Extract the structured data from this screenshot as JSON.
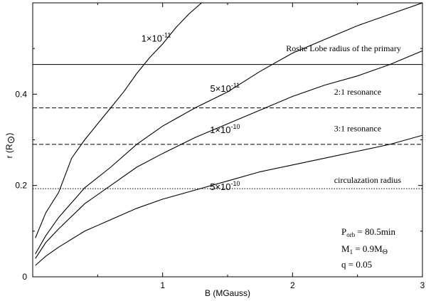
{
  "chart_data": {
    "type": "line",
    "xlabel": "B (MGauss)",
    "ylabel": "r (R",
    "ylabel_symbol": "⊙",
    "ylabel_close": ")",
    "xlim": [
      0.0,
      3.0
    ],
    "ylim": [
      0.0,
      0.6
    ],
    "x_ticks": [
      {
        "value": 1,
        "label": "1"
      },
      {
        "value": 2,
        "label": "2"
      },
      {
        "value": 3,
        "label": "3"
      }
    ],
    "y_ticks": [
      {
        "value": 0.0,
        "label": "0"
      },
      {
        "value": 0.2,
        "label": "0.2"
      },
      {
        "value": 0.4,
        "label": "0.4"
      }
    ],
    "grid": false,
    "series": [
      {
        "label_mantissa": "1×10",
        "label_exp": "-11",
        "label_at": [
          0.95,
          0.515
        ],
        "x": [
          0.02,
          0.1,
          0.2,
          0.3,
          0.4,
          0.5,
          0.6,
          0.7,
          0.8,
          0.9,
          1.0,
          1.1,
          1.2,
          1.3
        ],
        "y": [
          0.085,
          0.14,
          0.185,
          0.26,
          0.3,
          0.335,
          0.37,
          0.405,
          0.445,
          0.48,
          0.51,
          0.545,
          0.575,
          0.6
        ]
      },
      {
        "label_mantissa": "5×10",
        "label_exp": "-11",
        "label_at": [
          1.48,
          0.405
        ],
        "x": [
          0.02,
          0.1,
          0.2,
          0.4,
          0.6,
          0.8,
          1.0,
          1.25,
          1.5,
          1.75,
          2.0,
          2.25,
          2.5,
          2.75,
          3.0
        ],
        "y": [
          0.05,
          0.09,
          0.13,
          0.195,
          0.24,
          0.29,
          0.33,
          0.37,
          0.405,
          0.45,
          0.49,
          0.52,
          0.55,
          0.575,
          0.6
        ]
      },
      {
        "label_mantissa": "1×10",
        "label_exp": "-10",
        "label_at": [
          1.48,
          0.315
        ],
        "x": [
          0.02,
          0.1,
          0.2,
          0.4,
          0.6,
          0.8,
          1.0,
          1.25,
          1.5,
          1.75,
          2.0,
          2.25,
          2.5,
          2.75,
          3.0
        ],
        "y": [
          0.04,
          0.075,
          0.105,
          0.16,
          0.2,
          0.24,
          0.27,
          0.305,
          0.335,
          0.365,
          0.395,
          0.42,
          0.44,
          0.465,
          0.495
        ]
      },
      {
        "label_mantissa": "5×10",
        "label_exp": "-10",
        "label_at": [
          1.48,
          0.19
        ],
        "x": [
          0.02,
          0.1,
          0.2,
          0.4,
          0.6,
          0.8,
          1.0,
          1.25,
          1.5,
          1.75,
          2.0,
          2.25,
          2.5,
          2.75,
          3.0
        ],
        "y": [
          0.025,
          0.045,
          0.065,
          0.1,
          0.125,
          0.15,
          0.17,
          0.19,
          0.21,
          0.23,
          0.245,
          0.26,
          0.275,
          0.29,
          0.31
        ]
      }
    ],
    "reference_lines": [
      {
        "y": 0.465,
        "style": "solid",
        "label": "Roshe Lobe radius of the primary",
        "label_x": 1.95,
        "label_dy": 0.029
      },
      {
        "y": 0.37,
        "style": "dashed",
        "label": "2:1 resonance",
        "label_x": 2.32,
        "label_dy": 0.029
      },
      {
        "y": 0.29,
        "style": "dashed",
        "label": "3:1 resonance",
        "label_x": 2.32,
        "label_dy": 0.029
      },
      {
        "y": 0.193,
        "style": "dotted",
        "label": "circulazation radius",
        "label_x": 2.32,
        "label_dy": 0.0125
      }
    ],
    "info_box": {
      "porb_main": "P",
      "porb_sub": "orb",
      "porb_rest": " = 80.5min",
      "m1_main": "M",
      "m1_sub": "1",
      "m1_rest": " = 0.9M",
      "m1_sym": "Θ",
      "q_text": "q = 0.05"
    }
  }
}
